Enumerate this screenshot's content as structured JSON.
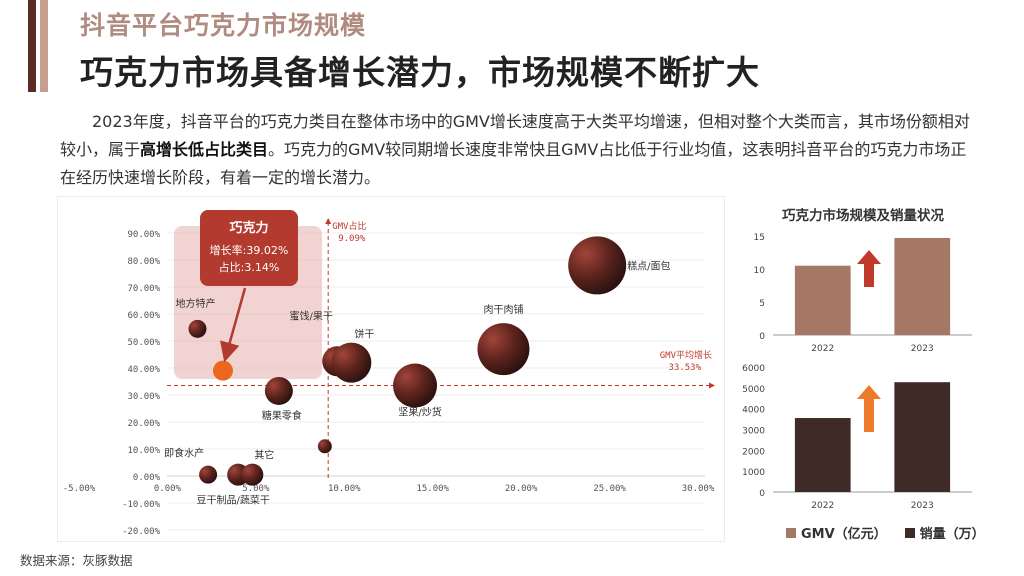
{
  "header": {
    "section_title": "抖音平台巧克力市场规模",
    "headline": "巧克力市场具备增长潜力，市场规模不断扩大"
  },
  "description": {
    "part1": "2023年度，抖音平台的巧克力类目在整体市场中的GMV增长速度高于大类平均增速，但相对整个大类而言，其市场份额相对较小，属于",
    "bold": "高增长低占比类目",
    "part2": "。巧克力的GMV较同期增长速度非常快且GMV占比低于行业均值，这表明抖音平台的巧克力市场正在经历快速增长阶段，有着一定的增长潜力。"
  },
  "callout": {
    "title": "巧克力",
    "growth": "增长率:39.02%",
    "share": "占比:3.14%"
  },
  "colors": {
    "accent_dark": "#5a2b25",
    "gmv_bar": "#a57865",
    "volume_bar": "#3e2a26",
    "highlight": "#e9671e",
    "arrow_red": "#c0392b",
    "arrow_orange": "#ec7c2c"
  },
  "chart_data": [
    {
      "type": "scatter",
      "xlabel": "",
      "ylabel": "",
      "xlim": [
        -5,
        30
      ],
      "ylim": [
        -20,
        90
      ],
      "x_ticks": [
        "-5.00%",
        "0.00%",
        "5.00%",
        "10.00%",
        "15.00%",
        "20.00%",
        "25.00%",
        "30.00%"
      ],
      "x_tick_values": [
        -5,
        0,
        5,
        10,
        15,
        20,
        25,
        30
      ],
      "y_ticks": [
        "90.00%",
        "80.00%",
        "70.00%",
        "60.00%",
        "50.00%",
        "40.00%",
        "30.00%",
        "20.00%",
        "10.00%",
        "0.00%",
        "-10.00%",
        "-20.00%"
      ],
      "y_tick_values": [
        90,
        80,
        70,
        60,
        50,
        40,
        30,
        20,
        10,
        0,
        -10,
        -20
      ],
      "grid": true,
      "points": [
        {
          "label": "巧克力",
          "x": 3.14,
          "y": 39.02,
          "highlight": true
        },
        {
          "label": "地方特产",
          "x": 1.7,
          "y": 54.5
        },
        {
          "label": "蜜饯/果干",
          "x": 9.6,
          "y": 42.5
        },
        {
          "label": "饼干",
          "x": 10.4,
          "y": 42.0
        },
        {
          "label": "糖果零食",
          "x": 6.3,
          "y": 31.5
        },
        {
          "label": "坚果/炒货",
          "x": 14.0,
          "y": 33.5
        },
        {
          "label": "肉干肉铺",
          "x": 19.0,
          "y": 47.0
        },
        {
          "label": "糕点/面包",
          "x": 24.3,
          "y": 78.0
        },
        {
          "label": "即食水产",
          "x": 2.3,
          "y": 0.5
        },
        {
          "label": "豆干制品/蔬菜干",
          "x": 4.0,
          "y": 0.5
        },
        {
          "label": "其它",
          "x": 4.8,
          "y": 0.5
        },
        {
          "label": "",
          "x": 8.9,
          "y": 11.0
        }
      ],
      "reference_lines": {
        "vertical": {
          "label": "GMV占比",
          "value_label": "9.09%",
          "x": 9.09
        },
        "horizontal": {
          "label": "GMV平均增长",
          "value_label": "33.53%",
          "y": 33.53
        }
      }
    },
    {
      "type": "bar",
      "title": "巧克力市场规模及销量状况",
      "categories": [
        "2022",
        "2023"
      ],
      "series": [
        {
          "name": "GMV（亿元）",
          "values": [
            10.5,
            14.7
          ]
        }
      ],
      "ylim": [
        0,
        15
      ],
      "y_ticks": [
        "0",
        "5",
        "10",
        "15"
      ]
    },
    {
      "type": "bar",
      "categories": [
        "2022",
        "2023"
      ],
      "series": [
        {
          "name": "销量（万）",
          "values": [
            3550,
            5270
          ]
        }
      ],
      "ylim": [
        0,
        6000
      ],
      "y_ticks": [
        "0",
        "1000",
        "2000",
        "3000",
        "4000",
        "5000",
        "6000"
      ]
    }
  ],
  "legend": {
    "gmv": "GMV（亿元）",
    "volume": "销量（万）"
  },
  "source": "数据来源：灰豚数据"
}
